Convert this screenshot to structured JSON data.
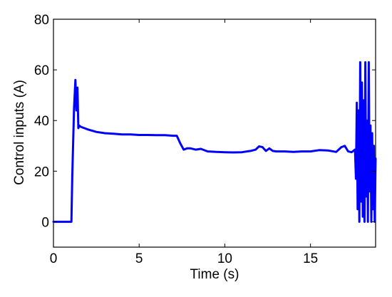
{
  "chart_data": {
    "type": "line",
    "xlabel": "Time (s)",
    "ylabel": "Control inputs (A)",
    "xlim": [
      0,
      18.8
    ],
    "ylim": [
      -10,
      80
    ],
    "xticks": [
      0,
      5,
      10,
      15
    ],
    "yticks": [
      0,
      20,
      40,
      60,
      80
    ],
    "grid": false,
    "series": [
      {
        "color": "#0000ff",
        "x": [
          0,
          1.05,
          1.1,
          1.2,
          1.28,
          1.34,
          1.4,
          1.45,
          1.5,
          1.6,
          1.8,
          2.0,
          2.5,
          3.0,
          3.5,
          4.0,
          4.5,
          5.0,
          5.5,
          6.0,
          6.5,
          7.0,
          7.2,
          7.4,
          7.6,
          7.8,
          8.0,
          8.3,
          8.6,
          9.0,
          9.5,
          10.0,
          10.5,
          11.0,
          11.5,
          11.8,
          12.0,
          12.2,
          12.4,
          12.6,
          12.8,
          13.0,
          13.5,
          14.0,
          14.5,
          15.0,
          15.5,
          16.0,
          16.5,
          16.8,
          17.0,
          17.2,
          17.4,
          17.6,
          17.65,
          17.7,
          17.75,
          17.8,
          17.85,
          17.9,
          17.95,
          18.0,
          18.05,
          18.1,
          18.15,
          18.2,
          18.25,
          18.3,
          18.35,
          18.4,
          18.45,
          18.5,
          18.55,
          18.6,
          18.65,
          18.7,
          18.75,
          18.8
        ],
        "y": [
          0,
          0,
          18,
          45,
          56,
          44,
          53,
          37,
          38,
          37.5,
          37,
          36.5,
          35.5,
          35,
          34.8,
          34.5,
          34.5,
          34.3,
          34.3,
          34.2,
          34.2,
          34,
          34,
          31,
          28.5,
          29,
          29,
          28.5,
          28.8,
          27.8,
          27.6,
          27.5,
          27.4,
          27.5,
          28,
          28.5,
          29.8,
          29.5,
          28,
          29,
          28,
          27.8,
          27.8,
          27.6,
          27.8,
          27.8,
          28.3,
          28.2,
          27.6,
          29.5,
          30,
          27.8,
          27.5,
          28.5,
          17,
          47,
          5,
          44,
          0,
          63,
          8,
          55,
          2,
          48,
          0,
          63,
          10,
          40,
          0,
          63,
          12,
          38,
          0,
          35,
          5,
          30,
          0,
          25
        ]
      }
    ]
  }
}
